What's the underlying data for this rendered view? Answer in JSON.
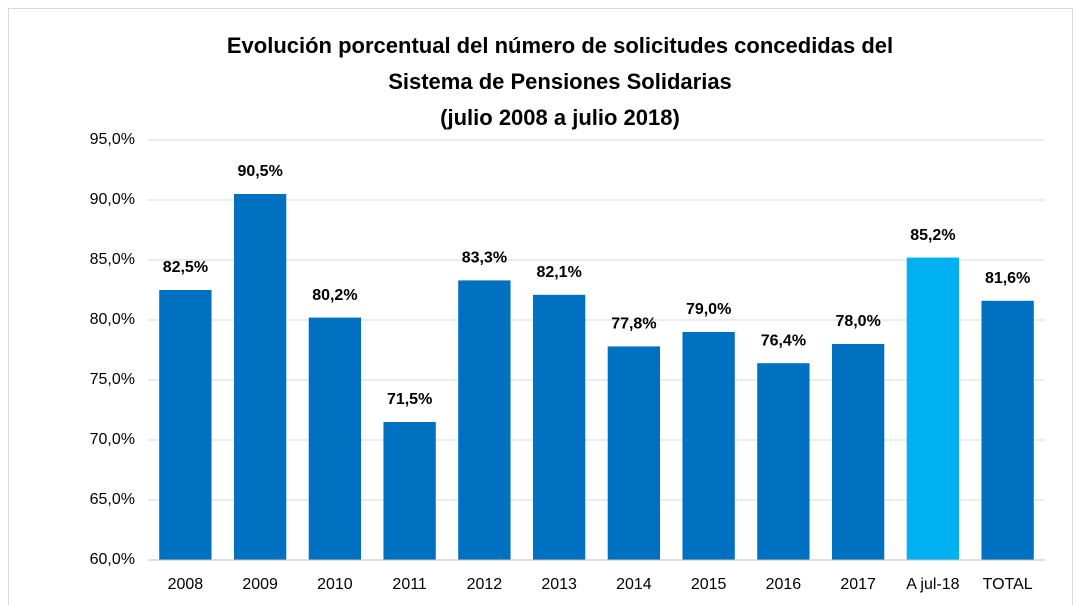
{
  "chart_data": {
    "type": "bar",
    "title": [
      "Evolución porcentual del número de solicitudes concedidas del",
      "Sistema de Pensiones Solidarias",
      "(julio 2008 a julio 2018)"
    ],
    "categories": [
      "2008",
      "2009",
      "2010",
      "2011",
      "2012",
      "2013",
      "2014",
      "2015",
      "2016",
      "2017",
      "A jul-18",
      "TOTAL"
    ],
    "values": [
      82.5,
      90.5,
      80.2,
      71.5,
      83.3,
      82.1,
      77.8,
      79.0,
      76.4,
      78.0,
      85.2,
      81.6
    ],
    "value_labels": [
      "82,5%",
      "90,5%",
      "80,2%",
      "71,5%",
      "83,3%",
      "82,1%",
      "77,8%",
      "79,0%",
      "76,4%",
      "78,0%",
      "85,2%",
      "81,6%"
    ],
    "colors": [
      "#0070c0",
      "#0070c0",
      "#0070c0",
      "#0070c0",
      "#0070c0",
      "#0070c0",
      "#0070c0",
      "#0070c0",
      "#0070c0",
      "#0070c0",
      "#00b0f0",
      "#0070c0"
    ],
    "ylim": [
      60,
      95
    ],
    "yticks": [
      {
        "value": 60,
        "label": "60,0%"
      },
      {
        "value": 65,
        "label": "65,0%"
      },
      {
        "value": 70,
        "label": "70,0%"
      },
      {
        "value": 75,
        "label": "75,0%"
      },
      {
        "value": 80,
        "label": "80,0%"
      },
      {
        "value": 85,
        "label": "85,0%"
      },
      {
        "value": 90,
        "label": "90,0%"
      },
      {
        "value": 95,
        "label": "95,0%"
      }
    ],
    "grid": true
  }
}
